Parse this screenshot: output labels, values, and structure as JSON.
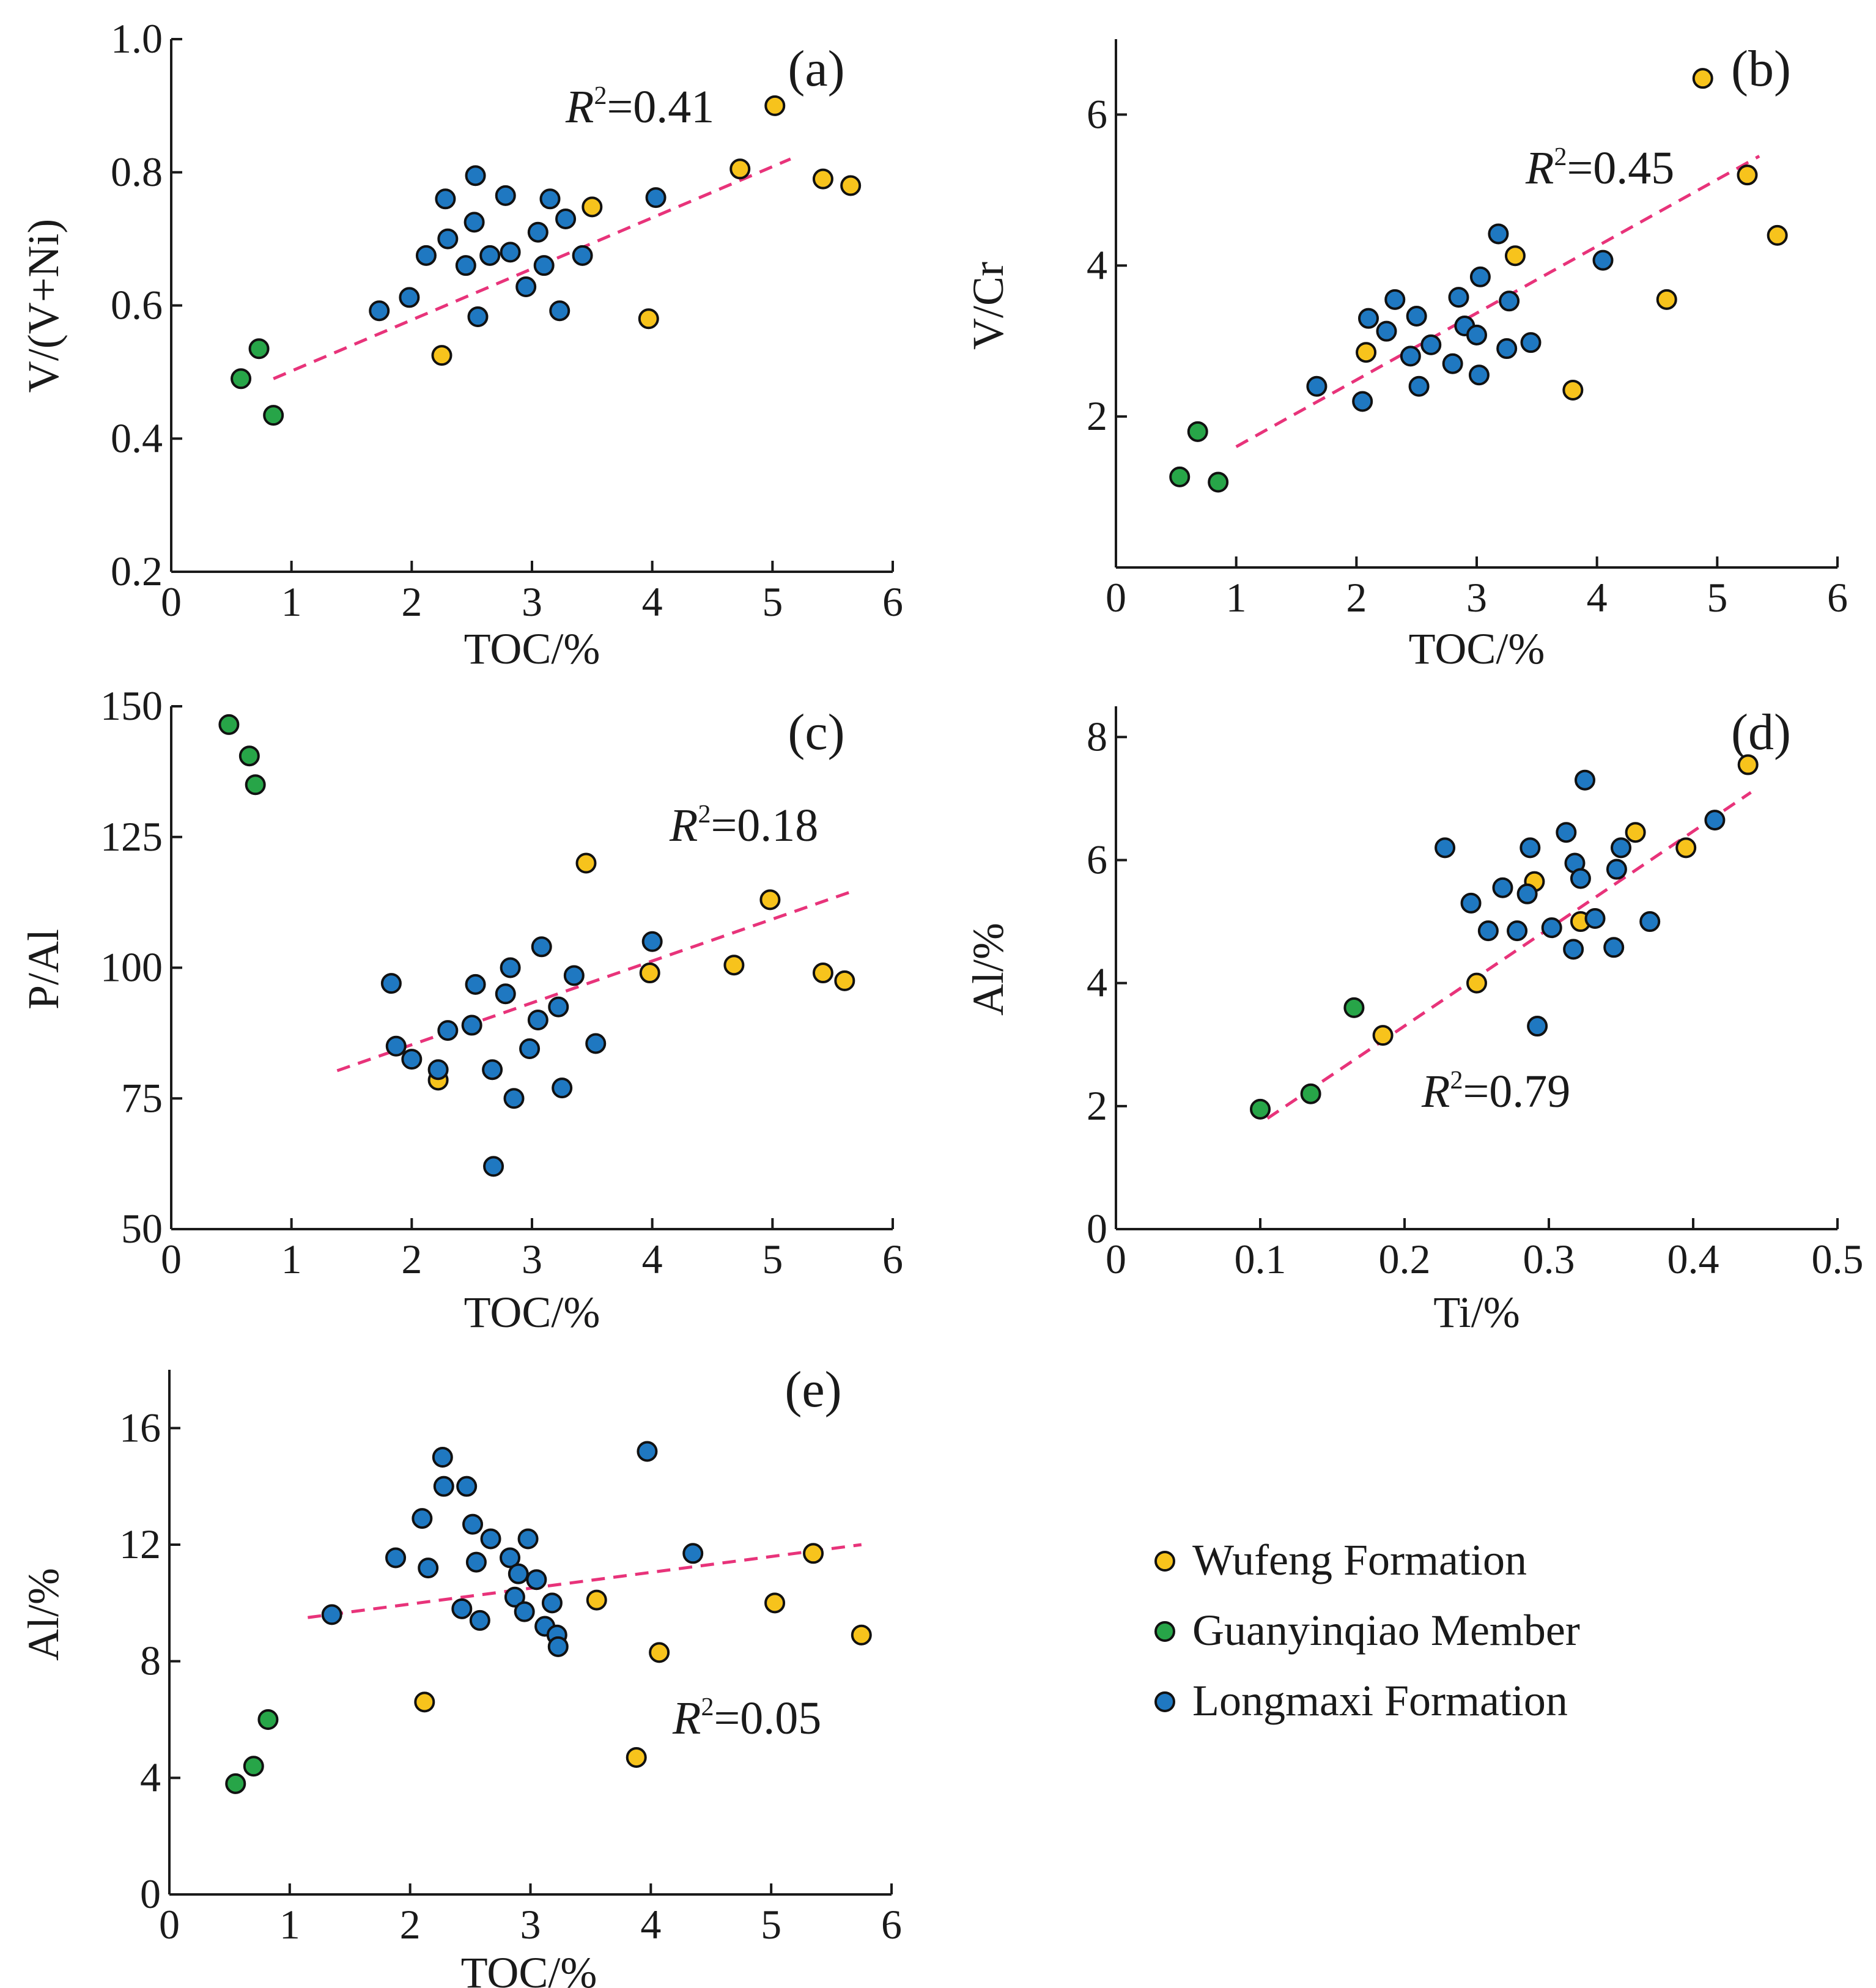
{
  "chart_data": [
    {
      "type": "scatter",
      "panel_label": "(a)",
      "xlabel": "TOC/%",
      "ylabel": "V/(V+Ni)",
      "xlim": [
        0,
        6
      ],
      "ylim": [
        0.2,
        1.0
      ],
      "xticks": [
        0,
        1,
        2,
        3,
        4,
        5,
        6
      ],
      "yticks": [
        0.2,
        0.4,
        0.6,
        0.8,
        1.0
      ],
      "x_tick_labels": [
        "0",
        "1",
        "2",
        "3",
        "4",
        "5",
        "6"
      ],
      "y_tick_labels": [
        "0.2",
        "0.4",
        "0.6",
        "0.8",
        "1.0"
      ],
      "r2": {
        "text_italic": "R",
        "superscript": "2",
        "value": "=0.41"
      },
      "trendline": {
        "x": [
          0.85,
          5.15
        ],
        "y": [
          0.49,
          0.82
        ]
      },
      "series": [
        {
          "name": "Wufeng Formation",
          "points": [
            [
              2.25,
              0.525
            ],
            [
              3.5,
              0.748
            ],
            [
              3.97,
              0.58
            ],
            [
              4.73,
              0.805
            ],
            [
              5.02,
              0.9
            ],
            [
              5.42,
              0.79
            ],
            [
              5.65,
              0.78
            ]
          ]
        },
        {
          "name": "Guanyinqiao Member",
          "points": [
            [
              0.58,
              0.49
            ],
            [
              0.73,
              0.535
            ],
            [
              0.85,
              0.435
            ]
          ]
        },
        {
          "name": "Longmaxi Formation",
          "points": [
            [
              1.73,
              0.592
            ],
            [
              1.98,
              0.612
            ],
            [
              2.12,
              0.675
            ],
            [
              2.28,
              0.76
            ],
            [
              2.3,
              0.7
            ],
            [
              2.45,
              0.66
            ],
            [
              2.52,
              0.725
            ],
            [
              2.53,
              0.795
            ],
            [
              2.55,
              0.583
            ],
            [
              2.65,
              0.675
            ],
            [
              2.78,
              0.765
            ],
            [
              2.82,
              0.68
            ],
            [
              2.95,
              0.628
            ],
            [
              3.05,
              0.71
            ],
            [
              3.1,
              0.66
            ],
            [
              3.15,
              0.76
            ],
            [
              3.23,
              0.592
            ],
            [
              3.28,
              0.73
            ],
            [
              3.42,
              0.675
            ],
            [
              4.03,
              0.762
            ]
          ]
        }
      ]
    },
    {
      "type": "scatter",
      "panel_label": "(b)",
      "xlabel": "TOC/%",
      "ylabel": "V/Cr",
      "xlim": [
        0,
        6
      ],
      "ylim": [
        0,
        7
      ],
      "xticks": [
        0,
        1,
        2,
        3,
        4,
        5,
        6
      ],
      "yticks": [
        2,
        4,
        6
      ],
      "x_tick_labels": [
        "0",
        "1",
        "2",
        "3",
        "4",
        "5",
        "6"
      ],
      "y_tick_labels": [
        "2",
        "4",
        "6"
      ],
      "r2": {
        "text_italic": "R",
        "superscript": "2",
        "value": "=0.45"
      },
      "trendline": {
        "x": [
          1.0,
          5.35
        ],
        "y": [
          1.6,
          5.45
        ]
      },
      "series": [
        {
          "name": "Wufeng Formation",
          "points": [
            [
              2.08,
              2.85
            ],
            [
              3.32,
              4.13
            ],
            [
              3.8,
              2.35
            ],
            [
              4.58,
              3.55
            ],
            [
              4.88,
              6.48
            ],
            [
              5.25,
              5.2
            ],
            [
              5.5,
              4.4
            ]
          ]
        },
        {
          "name": "Guanyinqiao Member",
          "points": [
            [
              0.53,
              1.2
            ],
            [
              0.68,
              1.8
            ],
            [
              0.85,
              1.13
            ]
          ]
        },
        {
          "name": "Longmaxi Formation",
          "points": [
            [
              1.67,
              2.4
            ],
            [
              2.05,
              2.2
            ],
            [
              2.1,
              3.3
            ],
            [
              2.25,
              3.13
            ],
            [
              2.32,
              3.55
            ],
            [
              2.45,
              2.8
            ],
            [
              2.5,
              3.33
            ],
            [
              2.52,
              2.4
            ],
            [
              2.62,
              2.95
            ],
            [
              2.8,
              2.7
            ],
            [
              2.85,
              3.58
            ],
            [
              2.9,
              3.2
            ],
            [
              3.0,
              3.08
            ],
            [
              3.02,
              2.55
            ],
            [
              3.03,
              3.85
            ],
            [
              3.18,
              4.42
            ],
            [
              3.25,
              2.9
            ],
            [
              3.27,
              3.53
            ],
            [
              3.45,
              2.98
            ],
            [
              4.05,
              4.07
            ]
          ]
        }
      ]
    },
    {
      "type": "scatter",
      "panel_label": "(c)",
      "xlabel": "TOC/%",
      "ylabel": "P/Al",
      "xlim": [
        0,
        6
      ],
      "ylim": [
        50,
        150
      ],
      "xticks": [
        0,
        1,
        2,
        3,
        4,
        5,
        6
      ],
      "yticks": [
        50,
        75,
        100,
        125,
        150
      ],
      "x_tick_labels": [
        "0",
        "1",
        "2",
        "3",
        "4",
        "5",
        "6"
      ],
      "y_tick_labels": [
        "50",
        "75",
        "100",
        "125",
        "150"
      ],
      "r2": {
        "text_italic": "R",
        "superscript": "2",
        "value": "=0.18"
      },
      "trendline": {
        "x": [
          1.38,
          5.65
        ],
        "y": [
          80.3,
          114.5
        ]
      },
      "series": [
        {
          "name": "Wufeng Formation",
          "points": [
            [
              2.22,
              78.5
            ],
            [
              3.45,
              120
            ],
            [
              3.98,
              99
            ],
            [
              4.68,
              100.5
            ],
            [
              4.98,
              113
            ],
            [
              5.42,
              99
            ],
            [
              5.6,
              97.5
            ]
          ]
        },
        {
          "name": "Guanyinqiao Member",
          "points": [
            [
              0.48,
              146.5
            ],
            [
              0.65,
              140.5
            ],
            [
              0.7,
              135
            ]
          ]
        },
        {
          "name": "Longmaxi Formation",
          "points": [
            [
              1.83,
              97
            ],
            [
              1.87,
              85
            ],
            [
              2.0,
              82.5
            ],
            [
              2.22,
              80.5
            ],
            [
              2.3,
              88
            ],
            [
              2.5,
              89
            ],
            [
              2.53,
              96.8
            ],
            [
              2.67,
              80.5
            ],
            [
              2.68,
              62
            ],
            [
              2.78,
              95
            ],
            [
              2.82,
              100
            ],
            [
              2.85,
              75
            ],
            [
              2.98,
              84.5
            ],
            [
              3.05,
              90
            ],
            [
              3.08,
              104
            ],
            [
              3.22,
              92.5
            ],
            [
              3.25,
              77
            ],
            [
              3.35,
              98.5
            ],
            [
              3.53,
              85.5
            ],
            [
              4.0,
              105
            ]
          ]
        }
      ]
    },
    {
      "type": "scatter",
      "panel_label": "(d)",
      "xlabel": "Ti/%",
      "ylabel": "Al/%",
      "xlim": [
        0,
        0.5
      ],
      "ylim": [
        0,
        8.5
      ],
      "xticks": [
        0,
        0.1,
        0.2,
        0.3,
        0.4,
        0.5
      ],
      "yticks": [
        0,
        2,
        4,
        6,
        8
      ],
      "x_tick_labels": [
        "0",
        "0.1",
        "0.2",
        "0.3",
        "0.4",
        "0.5"
      ],
      "y_tick_labels": [
        "0",
        "2",
        "4",
        "6",
        "8"
      ],
      "r2": {
        "text_italic": "R",
        "superscript": "2",
        "value": "=0.79"
      },
      "trendline": {
        "x": [
          0.105,
          0.44
        ],
        "y": [
          1.8,
          7.1
        ]
      },
      "series": [
        {
          "name": "Wufeng Formation",
          "points": [
            [
              0.185,
              3.15
            ],
            [
              0.25,
              4.0
            ],
            [
              0.29,
              5.65
            ],
            [
              0.322,
              5.0
            ],
            [
              0.36,
              6.45
            ],
            [
              0.395,
              6.2
            ],
            [
              0.438,
              7.55
            ]
          ]
        },
        {
          "name": "Guanyinqiao Member",
          "points": [
            [
              0.1,
              1.95
            ],
            [
              0.135,
              2.2
            ],
            [
              0.165,
              3.6
            ]
          ]
        },
        {
          "name": "Longmaxi Formation",
          "points": [
            [
              0.228,
              6.2
            ],
            [
              0.246,
              5.3
            ],
            [
              0.258,
              4.85
            ],
            [
              0.268,
              5.55
            ],
            [
              0.278,
              4.85
            ],
            [
              0.285,
              5.45
            ],
            [
              0.287,
              6.2
            ],
            [
              0.292,
              3.3
            ],
            [
              0.302,
              4.9
            ],
            [
              0.312,
              6.45
            ],
            [
              0.317,
              4.55
            ],
            [
              0.318,
              5.95
            ],
            [
              0.322,
              5.7
            ],
            [
              0.325,
              7.3
            ],
            [
              0.332,
              5.05
            ],
            [
              0.345,
              4.58
            ],
            [
              0.347,
              5.85
            ],
            [
              0.35,
              6.2
            ],
            [
              0.37,
              5.0
            ],
            [
              0.415,
              6.65
            ]
          ]
        }
      ]
    },
    {
      "type": "scatter",
      "panel_label": "(e)",
      "xlabel": "TOC/%",
      "ylabel": "Al/%",
      "xlim": [
        0,
        6
      ],
      "ylim": [
        0,
        18
      ],
      "xticks": [
        0,
        1,
        2,
        3,
        4,
        5,
        6
      ],
      "yticks": [
        0,
        4,
        8,
        12,
        16
      ],
      "x_tick_labels": [
        "0",
        "1",
        "2",
        "3",
        "4",
        "5",
        "6"
      ],
      "y_tick_labels": [
        "0",
        "4",
        "8",
        "12",
        "16"
      ],
      "r2": {
        "text_italic": "R",
        "superscript": "2",
        "value": "=0.05"
      },
      "trendline": {
        "x": [
          1.15,
          5.75
        ],
        "y": [
          9.5,
          12.0
        ]
      },
      "series": [
        {
          "name": "Wufeng Formation",
          "points": [
            [
              2.12,
              6.6
            ],
            [
              3.55,
              10.1
            ],
            [
              3.88,
              4.7
            ],
            [
              4.07,
              8.3
            ],
            [
              5.03,
              10.0
            ],
            [
              5.35,
              11.7
            ],
            [
              5.75,
              8.9
            ]
          ]
        },
        {
          "name": "Guanyinqiao Member",
          "points": [
            [
              0.55,
              3.8
            ],
            [
              0.7,
              4.4
            ],
            [
              0.82,
              6.0
            ]
          ]
        },
        {
          "name": "Longmaxi Formation",
          "points": [
            [
              1.35,
              9.6
            ],
            [
              1.88,
              11.55
            ],
            [
              2.1,
              12.9
            ],
            [
              2.15,
              11.2
            ],
            [
              2.27,
              15.0
            ],
            [
              2.28,
              14.0
            ],
            [
              2.43,
              9.8
            ],
            [
              2.47,
              14.0
            ],
            [
              2.52,
              12.7
            ],
            [
              2.55,
              11.4
            ],
            [
              2.58,
              9.4
            ],
            [
              2.67,
              12.2
            ],
            [
              2.83,
              11.55
            ],
            [
              2.87,
              10.2
            ],
            [
              2.9,
              11.0
            ],
            [
              2.95,
              9.7
            ],
            [
              2.98,
              12.2
            ],
            [
              3.05,
              10.8
            ],
            [
              3.12,
              9.2
            ],
            [
              3.18,
              10.0
            ],
            [
              3.22,
              8.9
            ],
            [
              3.23,
              8.5
            ],
            [
              3.97,
              15.2
            ],
            [
              4.35,
              11.7
            ]
          ]
        }
      ]
    }
  ],
  "legend": [
    {
      "label": "Wufeng Formation",
      "color": "#f7c31c"
    },
    {
      "label": "Guanyinqiao Member",
      "color": "#27a548"
    },
    {
      "label": "Longmaxi Formation",
      "color": "#1f78c1"
    }
  ],
  "colors": {
    "Wufeng Formation": "#f7c31c",
    "Guanyinqiao Member": "#27a548",
    "Longmaxi Formation": "#1f78c1",
    "trendline": "#e8337a"
  }
}
